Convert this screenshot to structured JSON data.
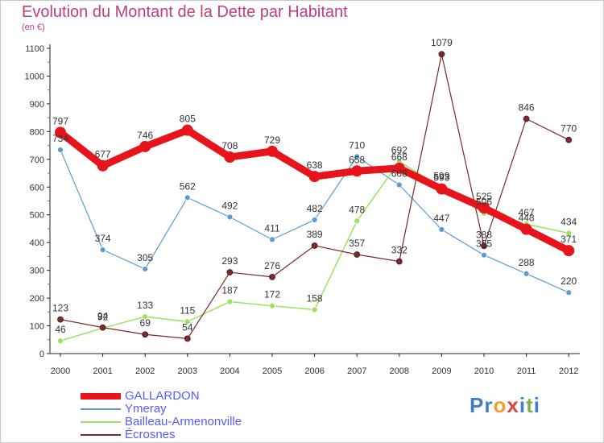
{
  "title": "Evolution du Montant de la Dette par Habitant",
  "subtitle": "(en €)",
  "logo": {
    "letters": [
      {
        "ch": "P",
        "color": "#3f7fc7"
      },
      {
        "ch": "r",
        "color": "#3f7fc7"
      },
      {
        "ch": "o",
        "color": "#f0a030"
      },
      {
        "ch": "x",
        "color": "#d94545"
      },
      {
        "ch": "i",
        "color": "#3f7fc7"
      },
      {
        "ch": "t",
        "color": "#7cb342"
      },
      {
        "ch": "i",
        "color": "#3f7fc7"
      }
    ]
  },
  "chart_data": {
    "type": "line",
    "x": [
      "2000",
      "2001",
      "2002",
      "2003",
      "2004",
      "2005",
      "2006",
      "2007",
      "2008",
      "2009",
      "2010",
      "2011",
      "2012"
    ],
    "ylim": [
      0,
      1100
    ],
    "yticks": [
      0,
      100,
      200,
      300,
      400,
      500,
      600,
      700,
      800,
      900,
      1000,
      1100
    ],
    "grid": false,
    "legend_position": "bottom-left",
    "series": [
      {
        "name": "GALLARDON",
        "color": "#e8141c",
        "width": 9,
        "marker": 7,
        "values": [
          797,
          677,
          746,
          805,
          708,
          729,
          638,
          658,
          668,
          593,
          525,
          448,
          371
        ],
        "labels": [
          "797",
          "677",
          "746",
          "805",
          "708",
          "729",
          "638",
          "658",
          "668",
          "593",
          "525",
          "448",
          "371"
        ]
      },
      {
        "name": "Ymeray",
        "color": "#5b9bd5",
        "width": 1.2,
        "marker": 3.5,
        "values": [
          734,
          374,
          305,
          562,
          492,
          411,
          482,
          710,
          608,
          447,
          355,
          288,
          220
        ],
        "labels": [
          "734",
          "374",
          "305",
          "562",
          "492",
          "411",
          "482",
          "710",
          "608",
          "447",
          "355",
          "288",
          "220"
        ]
      },
      {
        "name": "Bailleau-Armenonville",
        "color": "#9be25e",
        "width": 1.5,
        "marker": 3.5,
        "values": [
          46,
          92,
          133,
          115,
          187,
          172,
          158,
          478,
          692,
          599,
          506,
          467,
          434
        ],
        "labels": [
          "46",
          "92",
          "133",
          "115",
          "187",
          "172",
          "158",
          "478",
          "692",
          "599",
          "506",
          "467",
          "434"
        ]
      },
      {
        "name": "Écrosnes",
        "color": "#7a2a2e",
        "width": 1.2,
        "marker": 3.5,
        "values": [
          123,
          94,
          69,
          54,
          293,
          276,
          389,
          357,
          332,
          1079,
          388,
          846,
          770
        ],
        "labels": [
          "123",
          "94",
          "69",
          "54",
          "293",
          "276",
          "389",
          "357",
          "332",
          "1079",
          "388",
          "846",
          "770"
        ]
      }
    ]
  }
}
